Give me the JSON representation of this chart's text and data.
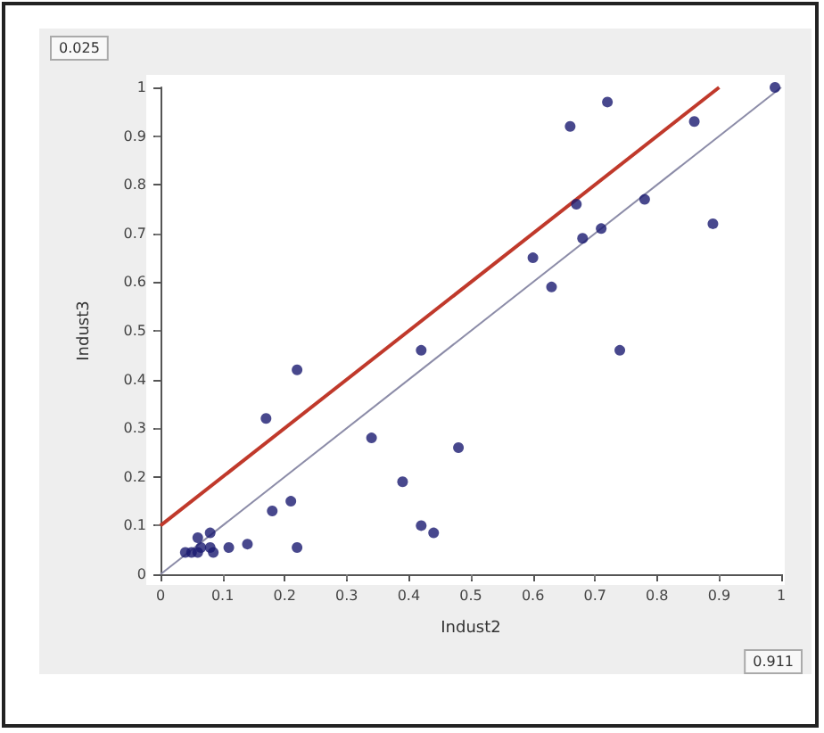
{
  "chart_data": {
    "type": "scatter",
    "xlabel": "Indust2",
    "ylabel": "Indust3",
    "xlim": [
      0,
      1
    ],
    "ylim": [
      0,
      1
    ],
    "xticks": [
      0,
      0.1,
      0.2,
      0.3,
      0.4,
      0.5,
      0.6,
      0.7,
      0.8,
      0.9,
      1
    ],
    "yticks": [
      0,
      0.1,
      0.2,
      0.3,
      0.4,
      0.5,
      0.6,
      0.7,
      0.8,
      0.9,
      1
    ],
    "grid": false,
    "marker": "circle",
    "annotations": [
      "0.025",
      "0.911"
    ],
    "series": [
      {
        "color": "#1a1a70",
        "x": [
          0.99,
          0.66,
          0.72,
          0.86,
          0.67,
          0.78,
          0.71,
          0.89,
          0.68,
          0.6,
          0.63,
          0.74,
          0.42,
          0.22,
          0.17,
          0.34,
          0.39,
          0.42,
          0.44,
          0.48,
          0.18,
          0.21,
          0.22,
          0.14,
          0.11,
          0.04,
          0.05,
          0.06,
          0.08,
          0.08,
          0.065,
          0.085,
          0.06
        ],
        "values": [
          1.0,
          0.92,
          0.97,
          0.93,
          0.76,
          0.77,
          0.71,
          0.72,
          0.69,
          0.65,
          0.59,
          0.46,
          0.46,
          0.42,
          0.32,
          0.28,
          0.19,
          0.1,
          0.085,
          0.26,
          0.13,
          0.15,
          0.055,
          0.062,
          0.055,
          0.045,
          0.045,
          0.075,
          0.085,
          0.055,
          0.055,
          0.045,
          0.045
        ]
      },
      {
        "type": "line",
        "color": "#c0392b",
        "x": [
          0,
          0.9
        ],
        "values": [
          0.1,
          1.0
        ],
        "marker": "none"
      },
      {
        "type": "line",
        "color": "#8c8ca8",
        "x": [
          0,
          1
        ],
        "values": [
          0,
          1
        ],
        "marker": "none"
      }
    ]
  }
}
